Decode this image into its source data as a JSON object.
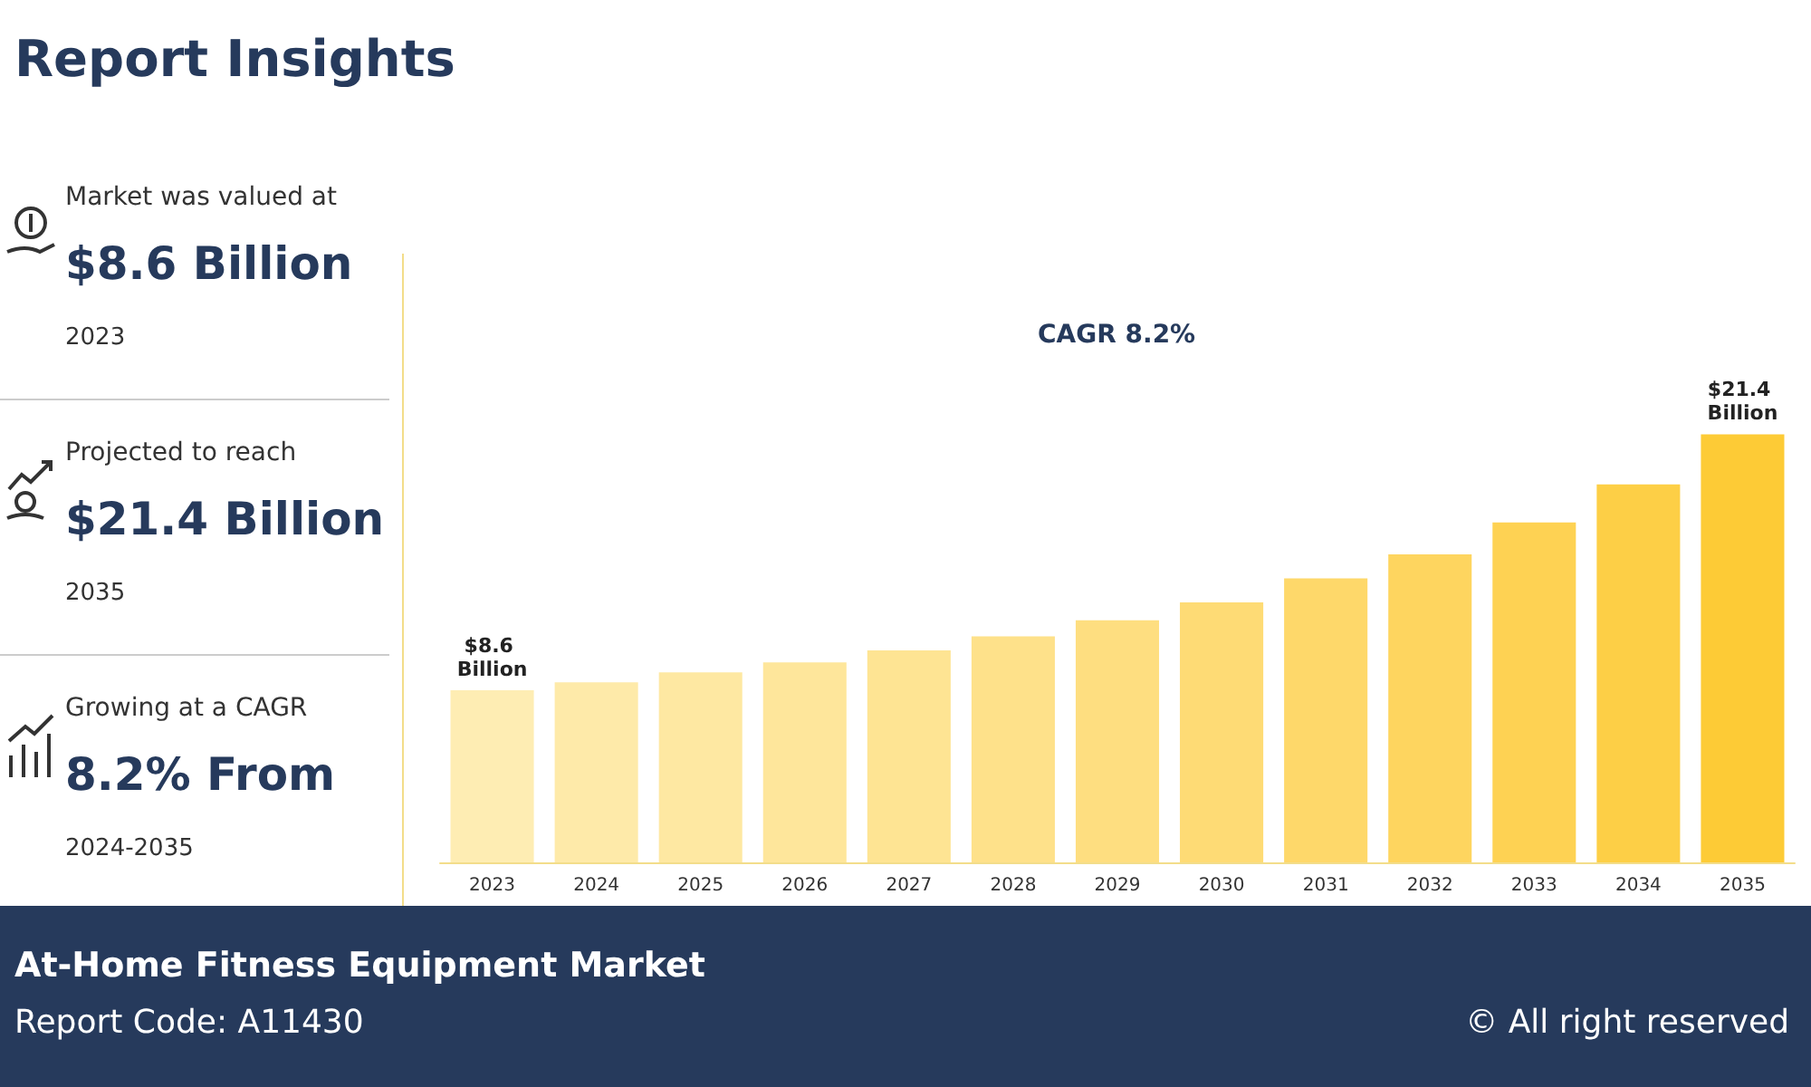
{
  "chart_data": [
    {
      "type": "other",
      "title": "Report Insights",
      "annotations": [
        "Market was valued at",
        "$8.6 Billion",
        "2023",
        "Projected to reach",
        "$21.4 Billion",
        "2035",
        "Growing at a CAGR",
        "8.2% From",
        "2024-2035"
      ]
    },
    {
      "type": "bar",
      "categories": [
        "2023",
        "2024",
        "2025",
        "2026",
        "2027",
        "2028",
        "2029",
        "2030",
        "2031",
        "2032",
        "2033",
        "2034",
        "2035"
      ],
      "values": [
        8.6,
        9.0,
        9.5,
        10.0,
        10.6,
        11.3,
        12.1,
        13.0,
        14.2,
        15.4,
        17.0,
        18.9,
        21.4
      ],
      "colors": [
        "#feedb3",
        "#feeaa9",
        "#fee8a2",
        "#fee69b",
        "#fee493",
        "#fee18a",
        "#fede80",
        "#fedb75",
        "#fed86a",
        "#fed55f",
        "#fed253",
        "#fdcf46",
        "#fdcb36"
      ],
      "value_labels": [
        "$8.6 Billion",
        null,
        null,
        null,
        null,
        null,
        null,
        null,
        null,
        null,
        null,
        null,
        "$21.4 Billion"
      ],
      "annotations": [
        "CAGR 8.2%"
      ]
    },
    {
      "type": "other",
      "title": "At-Home Fitness Equipment Market",
      "annotations": [
        "Report Code: A11430",
        "© All right reserved"
      ]
    }
  ]
}
